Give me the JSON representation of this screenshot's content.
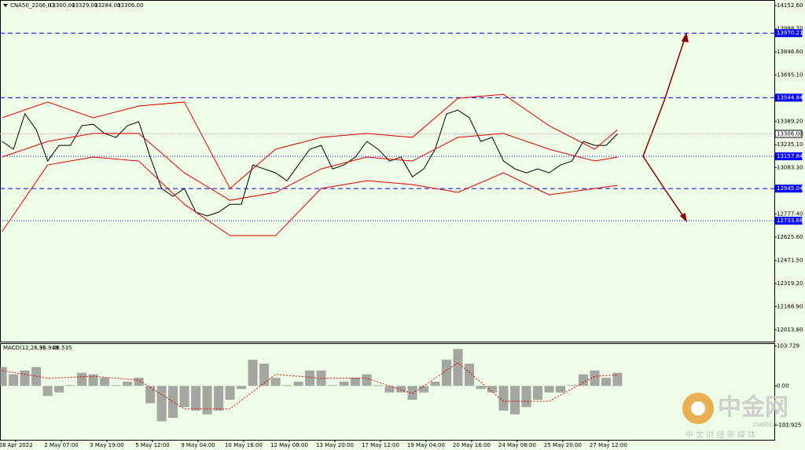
{
  "header": {
    "symbol": "CNA50_2206,H1",
    "ohlc": [
      "13300.00",
      "13329.00",
      "13284.00",
      "13306.00"
    ]
  },
  "watermark": {
    "brand": "中金网",
    "site": "CNGOLD.COM",
    "slogan": "中 文 财 经 新 媒 体"
  },
  "chart_data": [
    {
      "type": "line",
      "xlim": [
        -0.345,
        16.64
      ],
      "ylim": [
        11936,
        14189
      ],
      "xticks": [
        {
          "value": 0,
          "label": "28 Apr 2022"
        },
        {
          "value": 1,
          "label": "2 May 07:00"
        },
        {
          "value": 2,
          "label": "3 May 19:00"
        },
        {
          "value": 3,
          "label": "5 May 12:00"
        },
        {
          "value": 4,
          "label": "9 May 04:00"
        },
        {
          "value": 5,
          "label": "10 May 16:00"
        },
        {
          "value": 6,
          "label": "12 May 08:00"
        },
        {
          "value": 7,
          "label": "13 May 20:00"
        },
        {
          "value": 8,
          "label": "17 May 12:00"
        },
        {
          "value": 9,
          "label": "19 May 04:00"
        },
        {
          "value": 10,
          "label": "20 May 16:00"
        },
        {
          "value": 11,
          "label": "24 May 08:00"
        },
        {
          "value": 12,
          "label": "25 May 20:00"
        },
        {
          "value": 13,
          "label": "27 May 12:00"
        }
      ],
      "yticks": [
        {
          "value": 14152.6,
          "label": "14152.60"
        },
        {
          "value": 13998.7,
          "label": "13998.70"
        },
        {
          "value": 13846.6,
          "label": "13846.60"
        },
        {
          "value": 13695.1,
          "label": "13695.10"
        },
        {
          "value": 13389.2,
          "label": "13389.20"
        },
        {
          "value": 13235.1,
          "label": "13235.10"
        },
        {
          "value": 13083.3,
          "label": "13083.30"
        },
        {
          "value": 12777.4,
          "label": "12777.40"
        },
        {
          "value": 12625.6,
          "label": "12625.60"
        },
        {
          "value": 12471.5,
          "label": "12471.50"
        },
        {
          "value": 12319.2,
          "label": "12319.20"
        },
        {
          "value": 12166.9,
          "label": "12166.90"
        },
        {
          "value": 12013.8,
          "label": "12013.80"
        }
      ],
      "levels": [
        {
          "value": 13970.21,
          "style": "dashed",
          "color": "#0000ff"
        },
        {
          "value": 13544.84,
          "style": "dashed",
          "color": "#0000ff"
        },
        {
          "value": 13306,
          "label": "13306.00",
          "style": "dotted",
          "color": "#a0a0a0"
        },
        {
          "value": 13157.84,
          "style": "dotted",
          "color": "#0000ff"
        },
        {
          "value": 12945.04,
          "style": "dashed",
          "color": "#0000ff"
        },
        {
          "value": 12733.68,
          "style": "dotted",
          "color": "#0000ff"
        }
      ],
      "series": [
        {
          "color": "#000000",
          "x": [
            -0.3,
            -0.05,
            0.2,
            0.45,
            0.7,
            0.95,
            1.2,
            1.45,
            1.7,
            1.95,
            2.2,
            2.45,
            2.7,
            2.95,
            3.2,
            3.45,
            3.7,
            3.95,
            4.2,
            4.45,
            4.7,
            4.95,
            5.2,
            5.45,
            5.7,
            5.95,
            6.2,
            6.45,
            6.7,
            6.95,
            7.2,
            7.45,
            7.7,
            7.95,
            8.2,
            8.45,
            8.7,
            8.95,
            9.2,
            9.45,
            9.7,
            9.95,
            10.2,
            10.45,
            10.7,
            10.95,
            11.2,
            11.45,
            11.7,
            11.95,
            12.2,
            12.45,
            12.7,
            12.95,
            13.2
          ],
          "values": [
            13256,
            13205,
            13438,
            13334,
            13127,
            13230,
            13230,
            13360,
            13370,
            13308,
            13283,
            13360,
            13386,
            13153,
            12946,
            12894,
            12946,
            12790,
            12765,
            12790,
            12842,
            12842,
            13101,
            13075,
            13049,
            12997,
            13101,
            13205,
            13230,
            13075,
            13101,
            13153,
            13256,
            13205,
            13127,
            13153,
            13023,
            13075,
            13205,
            13438,
            13463,
            13412,
            13256,
            13283,
            13127,
            13075,
            13049,
            13075,
            13049,
            13101,
            13127,
            13256,
            13230,
            13230,
            13306
          ]
        },
        {
          "color": "#e00000",
          "x": [
            -0.3,
            0.7,
            1.7,
            2.7,
            3.7,
            4.7,
            5.7,
            6.7,
            7.7,
            8.7,
            9.7,
            10.7,
            11.7,
            12.7,
            13.2
          ],
          "values": [
            13412,
            13516,
            13412,
            13490,
            13516,
            12946,
            13205,
            13283,
            13309,
            13283,
            13541,
            13567,
            13360,
            13205,
            13334
          ]
        },
        {
          "color": "#e00000",
          "x": [
            -0.3,
            0.7,
            1.7,
            2.7,
            3.7,
            4.7,
            5.7,
            6.7,
            7.7,
            8.7,
            9.7,
            10.7,
            11.7,
            12.7,
            13.2
          ],
          "values": [
            13153,
            13256,
            13309,
            13309,
            13049,
            12868,
            12920,
            13075,
            13153,
            13127,
            13283,
            13309,
            13205,
            13127,
            13153
          ]
        },
        {
          "color": "#e00000",
          "x": [
            -0.3,
            0.7,
            1.7,
            2.7,
            3.7,
            4.7,
            5.7,
            6.7,
            7.7,
            8.7,
            9.7,
            10.7,
            11.7,
            12.7,
            13.2
          ],
          "values": [
            12661,
            13101,
            13153,
            13127,
            12842,
            12635,
            12635,
            12946,
            12997,
            12972,
            12920,
            13049,
            12904,
            12946,
            12966
          ]
        }
      ]
    },
    {
      "type": "bar",
      "title": "MACD(12,26,9)",
      "macd": 36.948,
      "signal": 28.535,
      "xlim": [
        -0.345,
        16.64
      ],
      "ylim": [
        -140,
        111
      ],
      "yticks": [
        103.729,
        {
          "value": 0,
          "label": "0.00"
        },
        -101.925
      ],
      "series": [
        {
          "type": "bar",
          "color": "#8a8a8a",
          "x": [
            -0.3,
            -0.05,
            0.2,
            0.45,
            0.7,
            0.95,
            1.2,
            1.45,
            1.7,
            1.95,
            2.2,
            2.45,
            2.7,
            2.95,
            3.2,
            3.45,
            3.7,
            3.95,
            4.2,
            4.45,
            4.7,
            4.95,
            5.2,
            5.45,
            5.7,
            5.95,
            6.2,
            6.45,
            6.7,
            6.95,
            7.2,
            7.45,
            7.7,
            7.95,
            8.2,
            8.45,
            8.7,
            8.95,
            9.2,
            9.45,
            9.7,
            9.95,
            10.2,
            10.45,
            10.7,
            10.95,
            11.2,
            11.45,
            11.7,
            11.95,
            12.2,
            12.45,
            12.7,
            12.95,
            13.2
          ],
          "values": [
            49,
            30,
            40,
            49,
            -26,
            -17,
            2,
            34,
            30,
            21,
            2,
            11,
            21,
            -45,
            -92,
            -83,
            -55,
            -64,
            -74,
            -64,
            -36,
            -8,
            68,
            58,
            21,
            2,
            11,
            40,
            40,
            2,
            11,
            21,
            30,
            2,
            -17,
            -17,
            -36,
            -17,
            11,
            68,
            96,
            58,
            -8,
            -17,
            -64,
            -74,
            -55,
            -36,
            -17,
            -17,
            2,
            30,
            40,
            21,
            34
          ]
        },
        {
          "type": "line",
          "color": "#e00000",
          "x": [
            -0.3,
            0.7,
            1.7,
            2.7,
            3.7,
            4.7,
            5.7,
            6.7,
            7.7,
            8.7,
            9.7,
            10.7,
            11.7,
            12.7,
            13.2
          ],
          "values": [
            40,
            20,
            25,
            15,
            -60,
            -60,
            30,
            20,
            20,
            -20,
            60,
            -40,
            -40,
            25,
            28.535
          ]
        }
      ]
    }
  ]
}
